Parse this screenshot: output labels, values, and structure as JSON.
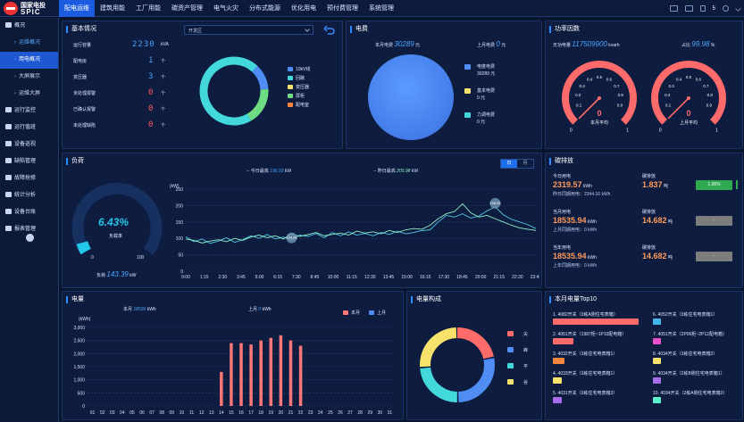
{
  "logo": {
    "line1": "国家电投",
    "line2": "SPIC"
  },
  "nav": [
    "配电运维",
    "建筑用能",
    "工厂用能",
    "碳资产管理",
    "电气火灾",
    "分布式能源",
    "优化用电",
    "预付费管理",
    "系统管理"
  ],
  "top_right": {
    "alarm_count": "5"
  },
  "sidebar": {
    "items": [
      {
        "label": "概况",
        "level": 0
      },
      {
        "label": "运维概况",
        "level": 1
      },
      {
        "label": "用电概况",
        "level": 1,
        "active": true
      },
      {
        "label": "大屏展示",
        "level": 1
      },
      {
        "label": "运维大屏",
        "level": 1
      },
      {
        "label": "运行监控",
        "level": 0
      },
      {
        "label": "运行值班",
        "level": 0
      },
      {
        "label": "设备巡视",
        "level": 0
      },
      {
        "label": "缺陷管理",
        "level": 0
      },
      {
        "label": "故障抢修",
        "level": 0
      },
      {
        "label": "统计分析",
        "level": 0
      },
      {
        "label": "设备台账",
        "level": 0
      },
      {
        "label": "报表管理",
        "level": 0
      }
    ]
  },
  "basic": {
    "title": "基本情况",
    "select": "开发区",
    "rows": [
      {
        "label": "运行容量",
        "value": "2230",
        "unit": "kVA"
      },
      {
        "label": "配电房",
        "value": "1",
        "unit": "个"
      },
      {
        "label": "变压器",
        "value": "3",
        "unit": "个"
      },
      {
        "label": "未处理报警",
        "value": "0",
        "unit": "个"
      },
      {
        "label": "已确认报警",
        "value": "0",
        "unit": "个"
      },
      {
        "label": "未处理缺陷",
        "value": "0",
        "unit": "个"
      }
    ],
    "legend": [
      {
        "name": "10kV线",
        "color": "#4f8df5"
      },
      {
        "name": "回路",
        "color": "#43d8dc"
      },
      {
        "name": "变压器",
        "color": "#f7e26b"
      },
      {
        "name": "屏柜",
        "color": "#6ddc82"
      },
      {
        "name": "配电室",
        "color": "#f6873c"
      }
    ]
  },
  "fee": {
    "title": "电费",
    "this_month_label": "本月电费",
    "this_month_value": "30289",
    "this_month_unit": "元",
    "last_month_label": "上月电费",
    "last_month_value": "0",
    "last_month_unit": "元",
    "legend": [
      {
        "name": "电度电费",
        "value": "30289 元",
        "color": "#4f8df5"
      },
      {
        "name": "基本电费",
        "value": "0 元",
        "color": "#f7e26b"
      },
      {
        "name": "力调电费",
        "value": "0 元",
        "color": "#43d8dc"
      }
    ]
  },
  "pf": {
    "title": "功率因数",
    "energy_label": "无功电量",
    "energy_value": "117509900",
    "energy_unit": "kvarh",
    "ratio_label": "占比",
    "ratio_value": "99.98",
    "ratio_unit": "%",
    "g1_value": "0",
    "g1_label": "本月平均",
    "g2_value": "0",
    "g2_label": "上月平均",
    "ticks": [
      "0",
      "0.1",
      "0.2",
      "0.3",
      "0.4",
      "0.5",
      "0.6",
      "0.7",
      "0.8",
      "0.9",
      "1"
    ]
  },
  "load": {
    "title": "负荷",
    "today_max_label": "今日最高",
    "today_max_value": "196.93",
    "today_max_unit": "kW",
    "yday_max_label": "昨日最高",
    "yday_max_value": "205.98",
    "yday_max_unit": "kW",
    "tab_day": "日",
    "tab_month": "月",
    "rate_value": "6.43%",
    "rate_label": "负载率",
    "gauge_min": "0",
    "gauge_max": "100",
    "load_label": "负荷",
    "load_value": "143.39",
    "load_unit": "kW",
    "peak_today_tag": "196.93",
    "valley_tag": "104.58"
  },
  "carbon": {
    "title": "碳排放",
    "rows": [
      {
        "period": "今日用电",
        "value": "2319.57",
        "unit": "kWh",
        "sub": "昨日同期用电：2344.16 kWh",
        "co_label": "碳排放",
        "co_value": "1.837",
        "co_unit": "吨",
        "badge": "1.05%",
        "badge_color": "#2fa84f"
      },
      {
        "period": "当月用电",
        "value": "18535.94",
        "unit": "kWh",
        "sub": "上月同期用电：0 kWh",
        "co_label": "碳排放",
        "co_value": "14.682",
        "co_unit": "吨",
        "badge": "-",
        "badge_color": "#7d7d7d"
      },
      {
        "period": "当年用电",
        "value": "18535.94",
        "unit": "kWh",
        "sub": "上年同期用电：0 kWh",
        "co_label": "碳排放",
        "co_value": "14.682",
        "co_unit": "吨",
        "badge": "-",
        "badge_color": "#7d7d7d"
      }
    ]
  },
  "energy": {
    "title": "电量",
    "this_month_label": "本月",
    "this_month_value": "18536",
    "this_month_unit": "kWh",
    "last_month_label": "上月",
    "last_month_value": "0",
    "last_month_unit": "kWh",
    "legend_this": "本月",
    "legend_last": "上月"
  },
  "composition": {
    "title": "电量构成",
    "legend": [
      {
        "name": "尖",
        "color": "#ff6b6b"
      },
      {
        "name": "峰",
        "color": "#4f8df5"
      },
      {
        "name": "平",
        "color": "#43d8dc"
      },
      {
        "name": "谷",
        "color": "#f7e26b"
      }
    ]
  },
  "top10": {
    "title": "本月电量Top10",
    "items": [
      {
        "label": "1. 4082开关（3栋A侧住宅表箱）",
        "color": "#ff6b6b",
        "frac": 1.0
      },
      {
        "label": "6. 4052开关（3栋住宅电表箱1）",
        "color": "#43b8e8",
        "frac": 0.1
      },
      {
        "label": "2. 4061开关（1987柜~1P10配电箱）",
        "color": "#ff6b6b",
        "frac": 0.24
      },
      {
        "label": "7. 4051开关（2P06柜~2P12配电箱）",
        "color": "#e84fc9",
        "frac": 0.1
      },
      {
        "label": "3. 4032开关（3栋住宅电表箱1）",
        "color": "#f6873c",
        "frac": 0.14
      },
      {
        "label": "8. 4034开关（3栋住宅电表箱2）",
        "color": "#f7e26b",
        "frac": 0.1
      },
      {
        "label": "4. 4033开关（3栋住宅电表箱1）",
        "color": "#f7e26b",
        "frac": 0.1
      },
      {
        "label": "9. 4034开关（2栋B侧住宅电表箱1）",
        "color": "#a86de8",
        "frac": 0.1
      },
      {
        "label": "5. 4031开关（3栋住宅电表箱3）",
        "color": "#a86de8",
        "frac": 0.1
      },
      {
        "label": "10. 4034开关（2栋A侧住宅电表箱2）",
        "color": "#5cf0d0",
        "frac": 0.1
      }
    ]
  },
  "chart_data": [
    {
      "type": "line",
      "title": "负荷",
      "ylabel": "(kW)",
      "ylim": [
        0,
        250
      ],
      "yticks": [
        0,
        50,
        100,
        150,
        200,
        250
      ],
      "x_ticks": [
        "0:00",
        "1:15",
        "2:30",
        "3:45",
        "5:00",
        "6:15",
        "7:30",
        "8:45",
        "10:00",
        "11:15",
        "12:30",
        "13:45",
        "15:00",
        "16:15",
        "17:30",
        "18:45",
        "20:00",
        "21:15",
        "22:30",
        "23:45"
      ],
      "series": [
        {
          "name": "今日",
          "color": "#4fc7e8",
          "values": [
            105,
            90,
            98,
            85,
            92,
            102,
            88,
            96,
            108,
            100,
            112,
            98,
            104,
            96,
            110,
            106,
            115,
            102,
            118,
            108,
            120,
            110,
            115,
            108,
            118,
            112,
            122,
            114,
            118,
            124,
            126,
            150,
            170,
            165,
            175,
            162,
            168,
            184,
            196,
            172,
            158,
            150,
            142,
            130
          ]
        },
        {
          "name": "昨日",
          "color": "#8ff0c8",
          "values": [
            98,
            94,
            86,
            92,
            96,
            90,
            100,
            94,
            104,
            110,
            102,
            108,
            98,
            114,
            106,
            112,
            118,
            108,
            112,
            116,
            110,
            122,
            116,
            120,
            114,
            124,
            118,
            126,
            130,
            128,
            140,
            160,
            175,
            182,
            205,
            178,
            165,
            170,
            160,
            150,
            140,
            132,
            128,
            124
          ]
        }
      ]
    },
    {
      "type": "bar",
      "title": "电量",
      "ylabel": "(kWh)",
      "ylim": [
        0,
        3000
      ],
      "yticks": [
        0,
        500,
        1000,
        1500,
        2000,
        2500,
        3000
      ],
      "categories": [
        "01",
        "02",
        "03",
        "04",
        "05",
        "06",
        "07",
        "08",
        "09",
        "10",
        "11",
        "12",
        "13",
        "14",
        "15",
        "16",
        "17",
        "18",
        "19",
        "20",
        "21",
        "22",
        "23",
        "24",
        "25",
        "26",
        "27",
        "28",
        "29",
        "30",
        "31"
      ],
      "series": [
        {
          "name": "本月",
          "color": "#ff7777",
          "values": [
            0,
            0,
            0,
            0,
            0,
            0,
            0,
            0,
            0,
            0,
            0,
            0,
            0,
            1300,
            2400,
            2400,
            2350,
            2500,
            2600,
            2700,
            2500,
            2300,
            0,
            0,
            0,
            0,
            0,
            0,
            0,
            0,
            0
          ]
        },
        {
          "name": "上月",
          "color": "#4f8df5",
          "values": [
            0,
            0,
            0,
            0,
            0,
            0,
            0,
            0,
            0,
            0,
            0,
            0,
            0,
            0,
            0,
            0,
            0,
            0,
            0,
            0,
            0,
            0,
            0,
            0,
            0,
            0,
            0,
            0,
            0,
            0,
            0
          ]
        }
      ]
    },
    {
      "type": "pie",
      "title": "电量构成",
      "categories": [
        "尖",
        "峰",
        "平",
        "谷"
      ],
      "values": [
        22,
        28,
        24,
        26
      ]
    }
  ]
}
